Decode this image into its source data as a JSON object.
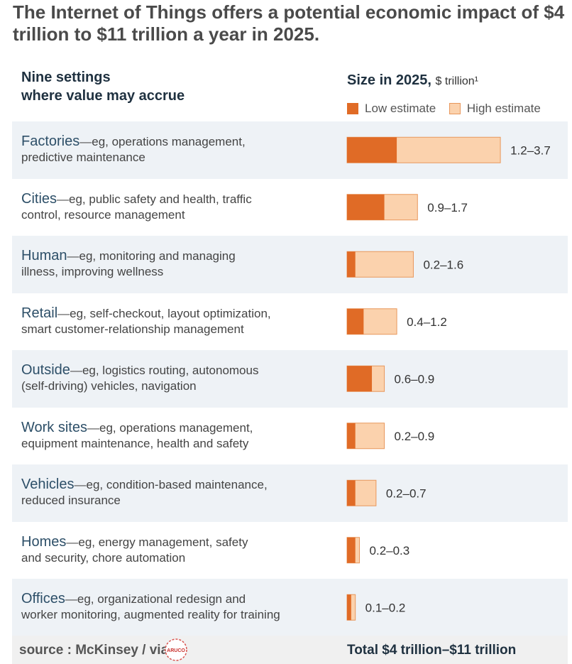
{
  "title": "The Internet of Things offers a potential economic impact of $4 trillion to $11 trillion a year in 2025.",
  "header": {
    "settings_line1": "Nine settings",
    "settings_line2": "where value may accrue",
    "size_label": "Size in 2025,",
    "size_unit": "$ trillion¹"
  },
  "legend": {
    "low": "Low estimate",
    "high": "High estimate"
  },
  "colors": {
    "low": "#e06b26",
    "high": "#fbd2ad",
    "high_border": "#e8975c",
    "row_shade": "#eef2f6"
  },
  "settings": [
    {
      "name": "Factories",
      "dash": "—",
      "desc_line1": "eg, operations management,",
      "desc_line2": "predictive maintenance"
    },
    {
      "name": "Cities",
      "dash": "—",
      "desc_line1": "eg, public safety and health, traffic",
      "desc_line2": "control, resource management"
    },
    {
      "name": "Human",
      "dash": "—",
      "desc_line1": "eg, monitoring and managing",
      "desc_line2": "illness, improving wellness"
    },
    {
      "name": "Retail",
      "dash": "—",
      "desc_line1": "eg, self-checkout, layout optimization,",
      "desc_line2": "smart customer-relationship management"
    },
    {
      "name": "Outside",
      "dash": "—",
      "desc_line1": "eg, logistics routing, autonomous",
      "desc_line2": "(self-driving) vehicles, navigation"
    },
    {
      "name": "Work sites",
      "dash": "—",
      "desc_line1": "eg, operations management,",
      "desc_line2": "equipment maintenance, health and safety"
    },
    {
      "name": "Vehicles",
      "dash": "—",
      "desc_line1": "eg, condition-based maintenance,",
      "desc_line2": "reduced insurance"
    },
    {
      "name": "Homes",
      "dash": "—",
      "desc_line1": "eg, energy management, safety",
      "desc_line2": "and security, chore automation"
    },
    {
      "name": "Offices",
      "dash": "—",
      "desc_line1": "eg, organizational redesign and",
      "desc_line2": "worker monitoring, augmented reality for training"
    }
  ],
  "chart_data": {
    "type": "bar",
    "title": "Size in 2025, $ trillion¹",
    "orientation": "horizontal",
    "categories": [
      "Factories",
      "Cities",
      "Human",
      "Retail",
      "Outside",
      "Work sites",
      "Vehicles",
      "Homes",
      "Offices"
    ],
    "series": [
      {
        "name": "Low estimate",
        "values": [
          1.2,
          0.9,
          0.2,
          0.4,
          0.6,
          0.2,
          0.2,
          0.2,
          0.1
        ]
      },
      {
        "name": "High estimate",
        "values": [
          3.7,
          1.7,
          1.6,
          1.2,
          0.9,
          0.9,
          0.7,
          0.3,
          0.2
        ]
      }
    ],
    "data_labels": [
      "1.2–3.7",
      "0.9–1.7",
      "0.2–1.6",
      "0.4–1.2",
      "0.6–0.9",
      "0.2–0.9",
      "0.2–0.7",
      "0.2–0.3",
      "0.1–0.2"
    ],
    "xlim": [
      0,
      3.7
    ],
    "grid": false,
    "legend": "top"
  },
  "footer": {
    "source": "source : McKinsey / via",
    "logo_text": "ARUCO",
    "total": "Total  $4 trillion–$11 trillion"
  }
}
